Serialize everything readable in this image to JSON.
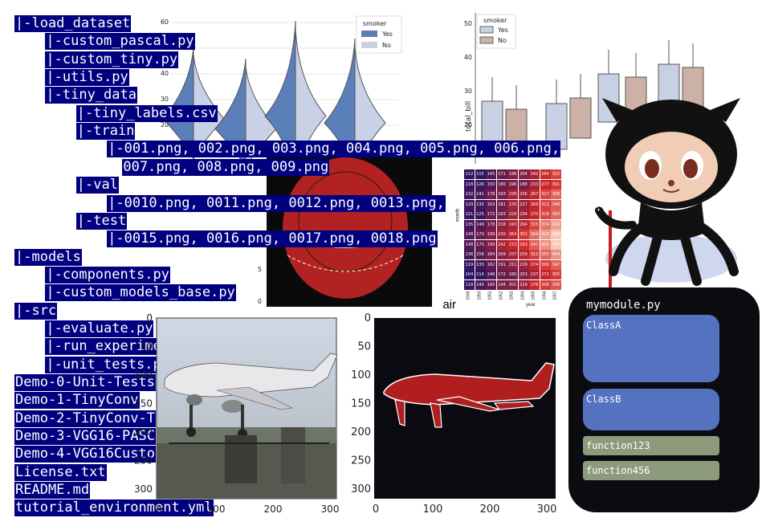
{
  "file_tree": [
    "|-load_dataset",
    "    |-custom_pascal.py",
    "    |-custom_tiny.py",
    "    |-utils.py",
    "    |-tiny_data",
    "        |-tiny_labels.csv",
    "        |-train",
    "            |-001.png, 002.png, 003.png, 004.png, 005.png, 006.png,",
    "              007.png, 008.png, 009.png",
    "        |-val",
    "            |-0010.png, 0011.png, 0012.png, 0013.png,",
    "        |-test",
    "            |-0015.png, 0016.png, 0017.png, 0018.png",
    "|-models",
    "    |-components.py",
    "    |-custom_models_base.py",
    "|-src",
    "    |-evaluate.py",
    "    |-run_experiment.py",
    "    |-unit_tests.py",
    "Demo-0-Unit-Tests",
    "Demo-1-TinyConv",
    "Demo-2-TinyConv-T",
    "Demo-3-VGG16-PASC",
    "Demo-4-VGG16Custo",
    "License.txt",
    "README.md",
    "tutorial_environment.yml"
  ],
  "violin": {
    "legend_title": "smoker",
    "legend_items": [
      "Yes",
      "No"
    ],
    "y_ticks": [
      "60",
      "50",
      "40",
      "30",
      "20",
      "10"
    ],
    "colors": {
      "yes": "#5b7fb8",
      "no": "#c9d1e6"
    }
  },
  "boxplot": {
    "legend_title": "smoker",
    "legend_items": [
      "Yes",
      "No"
    ],
    "ylabel": "total_bill",
    "y_ticks": [
      "50",
      "40",
      "30",
      "20"
    ],
    "colors": {
      "yes": "#c8d0e4",
      "no": "#cdb0a6"
    }
  },
  "heatmap": {
    "ylabel": "month",
    "xlabel": "year",
    "months": [
      "Jan",
      "Feb",
      "Mar",
      "Apr",
      "May",
      "Jun",
      "Jul",
      "Aug",
      "Sep",
      "Oct",
      "Nov",
      "Dec"
    ],
    "years": [
      "1949",
      "1950",
      "1951",
      "1952",
      "1953",
      "1954",
      "1955",
      "1956",
      "1957"
    ],
    "values": [
      [
        112,
        115,
        145,
        171,
        196,
        204,
        242,
        284,
        315
      ],
      [
        118,
        126,
        150,
        180,
        196,
        188,
        233,
        277,
        301
      ],
      [
        132,
        141,
        178,
        193,
        236,
        235,
        267,
        317,
        356
      ],
      [
        129,
        135,
        163,
        181,
        235,
        227,
        269,
        313,
        348
      ],
      [
        121,
        125,
        172,
        183,
        229,
        234,
        270,
        318,
        355
      ],
      [
        135,
        149,
        178,
        218,
        243,
        264,
        315,
        374,
        422
      ],
      [
        148,
        170,
        199,
        230,
        264,
        302,
        364,
        413,
        465
      ],
      [
        148,
        170,
        199,
        242,
        272,
        293,
        347,
        405,
        467
      ],
      [
        136,
        158,
        184,
        209,
        237,
        259,
        312,
        355,
        404
      ],
      [
        119,
        133,
        162,
        191,
        211,
        229,
        274,
        306,
        347
      ],
      [
        104,
        114,
        146,
        172,
        180,
        203,
        237,
        271,
        305
      ],
      [
        118,
        140,
        166,
        194,
        201,
        229,
        278,
        306,
        336
      ]
    ]
  },
  "scan": {
    "y_ticks": [
      "20",
      "15",
      "10",
      "5",
      "0"
    ],
    "caption": "air"
  },
  "photo": {
    "y_ticks": [
      "0",
      "50",
      "100",
      "150",
      "200",
      "250",
      "300"
    ],
    "x_ticks": [
      "0",
      "100",
      "200",
      "300"
    ]
  },
  "mask": {
    "y_ticks": [
      "0",
      "50",
      "100",
      "150",
      "200",
      "250",
      "300"
    ],
    "x_ticks": [
      "0",
      "100",
      "200",
      "300"
    ],
    "colors": {
      "background": "#0a0a10",
      "shape": "#b01e20",
      "outline": "#ffffff"
    }
  },
  "module_card": {
    "title": "mymodule.py",
    "classes": [
      "ClassA",
      "ClassB"
    ],
    "functions": [
      "function123",
      "function456"
    ]
  }
}
